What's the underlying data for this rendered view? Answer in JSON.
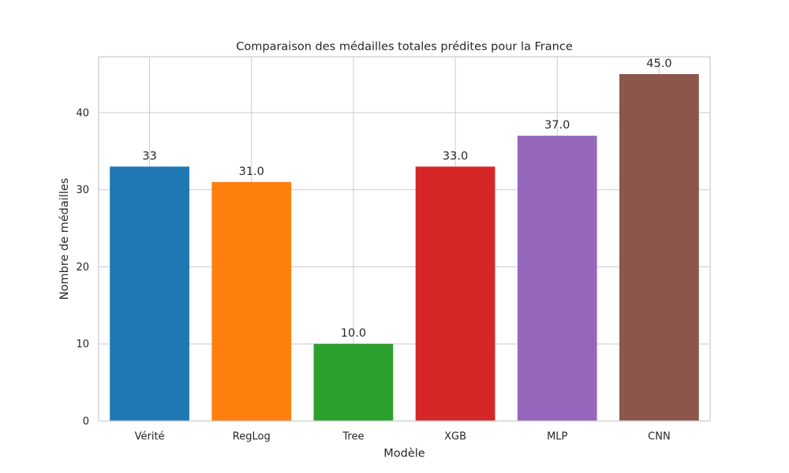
{
  "chart_data": {
    "type": "bar",
    "title": "Comparaison des médailles totales prédites pour la France",
    "xlabel": "Modèle",
    "ylabel": "Nombre de médailles",
    "categories": [
      "Vérité",
      "RegLog",
      "Tree",
      "XGB",
      "MLP",
      "CNN"
    ],
    "values": [
      33,
      31,
      10,
      33,
      37,
      45
    ],
    "value_labels": [
      "33",
      "31.0",
      "10.0",
      "33.0",
      "37.0",
      "45.0"
    ],
    "colors": [
      "#1f77b4",
      "#ff7f0e",
      "#2ca02c",
      "#d62728",
      "#9467bd",
      "#8c564b"
    ],
    "ylim": [
      0,
      47.25
    ],
    "yticks": [
      0,
      10,
      20,
      30,
      40
    ],
    "grid": true,
    "legend": "none"
  }
}
